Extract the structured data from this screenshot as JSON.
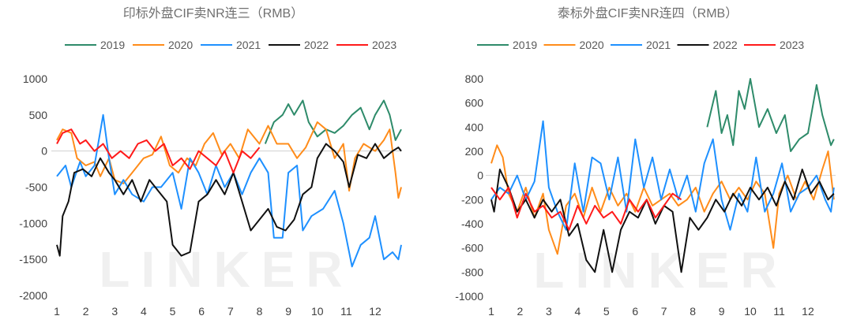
{
  "chart_data": [
    {
      "type": "line",
      "title": "印标外盘CIF卖NR连三（RMB）",
      "watermark": "LINKER",
      "xlabel": "",
      "ylabel": "",
      "x_ticks": [
        "1",
        "2",
        "3",
        "4",
        "5",
        "6",
        "7",
        "8",
        "9",
        "10",
        "11",
        "12"
      ],
      "y_ticks": [
        "1000",
        "500",
        "0",
        "-500",
        "-1000",
        "-1500",
        "-2000"
      ],
      "y_tick_values": [
        1000,
        500,
        0,
        -500,
        -1000,
        -1500,
        -2000
      ],
      "ylim": [
        -2000,
        1000
      ],
      "xlim": [
        1,
        12.9
      ],
      "legend_position": "top",
      "series": [
        {
          "name": "2019",
          "color": "#2e8b6a",
          "x": [
            8.2,
            8.5,
            8.8,
            9.0,
            9.2,
            9.5,
            9.7,
            10,
            10.3,
            10.6,
            10.9,
            11.2,
            11.5,
            11.8,
            12,
            12.3,
            12.5,
            12.7,
            12.9
          ],
          "y": [
            100,
            400,
            500,
            650,
            500,
            700,
            400,
            200,
            300,
            250,
            350,
            500,
            600,
            300,
            500,
            700,
            500,
            150,
            300
          ]
        },
        {
          "name": "2020",
          "color": "#ff8c1a",
          "x": [
            1,
            1.2,
            1.5,
            1.7,
            2,
            2.3,
            2.5,
            2.8,
            3,
            3.3,
            3.6,
            4,
            4.3,
            4.6,
            4.9,
            5.2,
            5.5,
            5.8,
            6.1,
            6.4,
            6.7,
            7,
            7.3,
            7.6,
            8,
            8.3,
            8.6,
            9,
            9.3,
            9.6,
            10,
            10.3,
            10.6,
            10.9,
            11.1,
            11.3,
            11.6,
            12,
            12.3,
            12.5,
            12.7,
            12.8,
            12.9
          ],
          "y": [
            150,
            300,
            250,
            -100,
            -200,
            -150,
            -350,
            -100,
            -400,
            -450,
            -300,
            -100,
            -50,
            200,
            -200,
            -300,
            -100,
            -200,
            100,
            250,
            -50,
            100,
            -100,
            300,
            100,
            350,
            100,
            100,
            -100,
            50,
            400,
            300,
            -100,
            100,
            -550,
            -100,
            100,
            0,
            150,
            300,
            -300,
            -650,
            -500
          ]
        },
        {
          "name": "2021",
          "color": "#1e90ff",
          "x": [
            1,
            1.3,
            1.5,
            1.8,
            2,
            2.3,
            2.6,
            2.8,
            3,
            3.3,
            3.6,
            4,
            4.3,
            4.6,
            5,
            5.3,
            5.6,
            5.9,
            6.2,
            6.5,
            6.8,
            7.1,
            7.4,
            7.7,
            8,
            8.3,
            8.5,
            8.8,
            9,
            9.3,
            9.5,
            9.8,
            10.2,
            10.6,
            10.9,
            11.2,
            11.5,
            11.8,
            12,
            12.3,
            12.6,
            12.8,
            12.9
          ],
          "y": [
            -350,
            -200,
            -500,
            -150,
            -350,
            -200,
            500,
            -100,
            -600,
            -400,
            -600,
            -700,
            -500,
            -500,
            -300,
            -800,
            -100,
            -300,
            -600,
            -200,
            -500,
            -300,
            -600,
            -300,
            -100,
            -300,
            -1200,
            -1200,
            -300,
            -200,
            -1100,
            -900,
            -800,
            -550,
            -1000,
            -1600,
            -1300,
            -1200,
            -900,
            -1500,
            -1400,
            -1500,
            -1300
          ]
        },
        {
          "name": "2022",
          "color": "#111111",
          "x": [
            1,
            1.1,
            1.2,
            1.4,
            1.6,
            1.9,
            2.2,
            2.5,
            2.8,
            3,
            3.3,
            3.6,
            3.9,
            4.2,
            4.5,
            4.8,
            5,
            5.3,
            5.6,
            5.9,
            6.2,
            6.5,
            6.8,
            7.1,
            7.4,
            7.7,
            8,
            8.3,
            8.6,
            8.9,
            9.2,
            9.5,
            9.8,
            10,
            10.3,
            10.6,
            10.9,
            11.1,
            11.4,
            11.7,
            12,
            12.3,
            12.6,
            12.8,
            12.9
          ],
          "y": [
            -1300,
            -1450,
            -900,
            -700,
            -300,
            -250,
            -350,
            -100,
            -300,
            -400,
            -600,
            -400,
            -700,
            -400,
            -550,
            -700,
            -1300,
            -1450,
            -1400,
            -700,
            -600,
            -400,
            -600,
            -300,
            -700,
            -1100,
            -950,
            -800,
            -1050,
            -1100,
            -950,
            -600,
            -500,
            -100,
            100,
            0,
            -150,
            -500,
            -50,
            -100,
            100,
            -100,
            0,
            50,
            0
          ]
        },
        {
          "name": "2023",
          "color": "#ff1a1a",
          "x": [
            1,
            1.2,
            1.5,
            1.8,
            2,
            2.3,
            2.6,
            2.9,
            3.2,
            3.5,
            3.8,
            4.1,
            4.4,
            4.7,
            5,
            5.3,
            5.6,
            5.9,
            6.2,
            6.5,
            6.8,
            7.1,
            7.4,
            7.7,
            8
          ],
          "y": [
            100,
            250,
            300,
            100,
            150,
            0,
            100,
            -100,
            0,
            -100,
            100,
            150,
            0,
            100,
            -200,
            -100,
            -250,
            0,
            -100,
            -200,
            0,
            -300,
            0,
            -100,
            50
          ]
        }
      ]
    },
    {
      "type": "line",
      "title": "泰标外盘CIF卖NR连四（RMB）",
      "watermark": "LINKER",
      "xlabel": "",
      "ylabel": "",
      "x_ticks": [
        "1",
        "2",
        "3",
        "4",
        "5",
        "6",
        "7",
        "8",
        "9",
        "10",
        "11",
        "12"
      ],
      "y_ticks": [
        "800",
        "600",
        "400",
        "200",
        "0",
        "-200",
        "-400",
        "-600",
        "-800",
        "-1000"
      ],
      "y_tick_values": [
        800,
        600,
        400,
        200,
        0,
        -200,
        -400,
        -600,
        -800,
        -1000
      ],
      "ylim": [
        -1000,
        800
      ],
      "xlim": [
        1,
        12.9
      ],
      "legend_position": "top",
      "series": [
        {
          "name": "2019",
          "color": "#2e8b6a",
          "x": [
            8.5,
            8.8,
            9.0,
            9.2,
            9.4,
            9.6,
            9.8,
            10,
            10.3,
            10.6,
            10.9,
            11.2,
            11.4,
            11.7,
            12,
            12.3,
            12.5,
            12.8,
            12.9
          ],
          "y": [
            400,
            700,
            350,
            500,
            250,
            700,
            550,
            800,
            400,
            550,
            350,
            500,
            200,
            300,
            350,
            750,
            500,
            250,
            300
          ]
        },
        {
          "name": "2020",
          "color": "#ff8c1a",
          "x": [
            1,
            1.2,
            1.4,
            1.6,
            1.9,
            2.2,
            2.5,
            2.8,
            3,
            3.3,
            3.6,
            3.9,
            4.2,
            4.5,
            4.8,
            5.1,
            5.4,
            5.7,
            6,
            6.3,
            6.6,
            6.9,
            7.2,
            7.5,
            7.8,
            8.1,
            8.4,
            8.7,
            9,
            9.3,
            9.6,
            9.9,
            10.2,
            10.5,
            10.8,
            11,
            11.3,
            11.6,
            11.9,
            12.2,
            12.5,
            12.7,
            12.9
          ],
          "y": [
            100,
            250,
            150,
            -150,
            -300,
            -100,
            -350,
            -150,
            -450,
            -650,
            -250,
            -150,
            -350,
            -100,
            -300,
            -100,
            -250,
            -150,
            -300,
            -100,
            -250,
            -200,
            -150,
            -250,
            -200,
            -100,
            -300,
            -150,
            -50,
            -200,
            -100,
            -200,
            -50,
            -150,
            -600,
            -150,
            0,
            -200,
            -50,
            -200,
            50,
            200,
            -200
          ]
        },
        {
          "name": "2021",
          "color": "#1e90ff",
          "x": [
            1,
            1.3,
            1.6,
            1.9,
            2.2,
            2.5,
            2.8,
            3,
            3.3,
            3.6,
            3.9,
            4.2,
            4.5,
            4.8,
            5.1,
            5.4,
            5.7,
            6,
            6.3,
            6.6,
            6.9,
            7.2,
            7.5,
            7.8,
            8.1,
            8.4,
            8.7,
            9,
            9.3,
            9.6,
            9.9,
            10.2,
            10.5,
            10.8,
            11.1,
            11.4,
            11.7,
            12,
            12.3,
            12.6,
            12.8,
            12.9
          ],
          "y": [
            -200,
            -100,
            -150,
            0,
            -200,
            -50,
            450,
            -100,
            -300,
            -450,
            100,
            -300,
            150,
            100,
            -200,
            150,
            -300,
            300,
            -100,
            150,
            -200,
            50,
            -200,
            0,
            -300,
            100,
            300,
            -200,
            -450,
            -150,
            -300,
            150,
            -300,
            -150,
            100,
            -300,
            -150,
            -100,
            0,
            -200,
            -300,
            -100
          ]
        },
        {
          "name": "2022",
          "color": "#111111",
          "x": [
            1,
            1.1,
            1.3,
            1.6,
            1.9,
            2.2,
            2.5,
            2.8,
            3.1,
            3.4,
            3.7,
            4,
            4.3,
            4.6,
            4.9,
            5.2,
            5.5,
            5.8,
            6.1,
            6.4,
            6.7,
            7,
            7.3,
            7.6,
            7.9,
            8.2,
            8.5,
            8.8,
            9.1,
            9.4,
            9.7,
            10,
            10.3,
            10.6,
            10.9,
            11.2,
            11.5,
            11.8,
            12.1,
            12.4,
            12.7,
            12.9
          ],
          "y": [
            -200,
            -300,
            50,
            -100,
            -300,
            -200,
            -350,
            -200,
            -300,
            -200,
            -500,
            -400,
            -700,
            -800,
            -450,
            -800,
            -450,
            -300,
            -350,
            -200,
            -400,
            -250,
            -300,
            -800,
            -350,
            -450,
            -350,
            -200,
            -300,
            -150,
            -250,
            -100,
            -200,
            -100,
            -250,
            -50,
            -200,
            50,
            -150,
            -50,
            -200,
            -150
          ]
        },
        {
          "name": "2023",
          "color": "#ff1a1a",
          "x": [
            1,
            1.3,
            1.6,
            1.9,
            2.2,
            2.5,
            2.8,
            3.1,
            3.4,
            3.7,
            4,
            4.3,
            4.6,
            4.9,
            5.2,
            5.5,
            5.8,
            6.1,
            6.4,
            6.7,
            7,
            7.3,
            7.6
          ],
          "y": [
            -100,
            -200,
            -100,
            -350,
            -150,
            -300,
            -250,
            -350,
            -300,
            -450,
            -250,
            -400,
            -250,
            -350,
            -300,
            -400,
            -200,
            -300,
            -200,
            -350,
            -250,
            -150,
            -200
          ]
        }
      ]
    }
  ]
}
